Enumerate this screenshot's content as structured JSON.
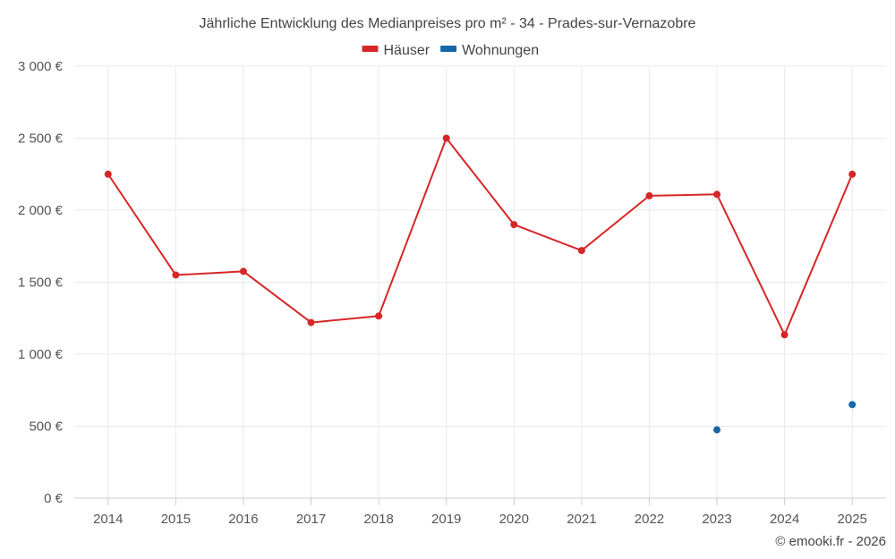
{
  "chart_data": {
    "type": "line",
    "title": "Jährliche Entwicklung des Medianpreises pro m² - 34 - Prades-sur-Vernazobre",
    "categories": [
      "2014",
      "2015",
      "2016",
      "2017",
      "2018",
      "2019",
      "2020",
      "2021",
      "2022",
      "2023",
      "2024",
      "2025"
    ],
    "series": [
      {
        "name": "Häuser",
        "color": "#d62728",
        "values": [
          2250,
          1550,
          1575,
          1220,
          1265,
          2500,
          1900,
          1720,
          2100,
          2110,
          1135,
          2250
        ]
      },
      {
        "name": "Wohnungen",
        "color": "#1368aa",
        "values": [
          null,
          null,
          null,
          null,
          null,
          null,
          null,
          null,
          null,
          475,
          null,
          650
        ]
      }
    ],
    "ylim": [
      0,
      3000
    ],
    "yticks": [
      0,
      500,
      1000,
      1500,
      2000,
      2500,
      3000
    ],
    "ytick_labels": [
      "0 €",
      "500 €",
      "1 000 €",
      "1 500 €",
      "2 000 €",
      "2 500 €",
      "3 000 €"
    ],
    "legend_position": "top-center",
    "grid": true,
    "credit": "© emooki.fr - 2026"
  }
}
